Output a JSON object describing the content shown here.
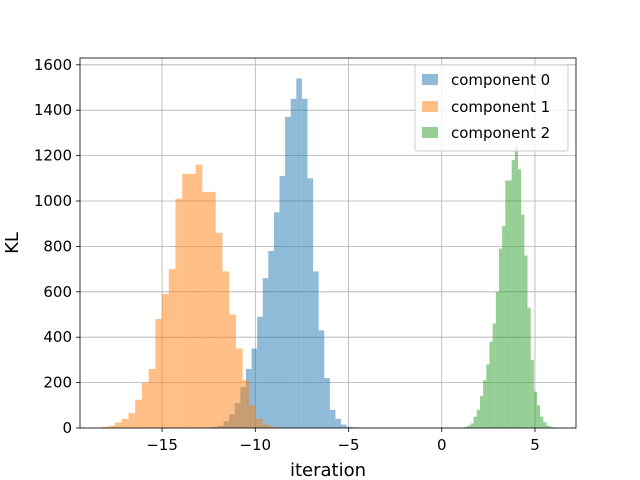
{
  "chart_data": {
    "type": "bar",
    "xlabel": "iteration",
    "ylabel": "KL",
    "xlim": [
      -19.4,
      7.2
    ],
    "ylim": [
      0,
      1630
    ],
    "xticks": [
      {
        "value": -15,
        "label": "−15"
      },
      {
        "value": -10,
        "label": "−10"
      },
      {
        "value": -5,
        "label": "−5"
      },
      {
        "value": 0,
        "label": "0"
      },
      {
        "value": 5,
        "label": "5"
      }
    ],
    "yticks": [
      0,
      200,
      400,
      600,
      800,
      1000,
      1200,
      1400,
      1600
    ],
    "grid": true,
    "legend_position": "top-right",
    "series": [
      {
        "name": "component 0",
        "color": "#1f77b4",
        "alpha": 0.5,
        "bin_start": -12.3,
        "bin_width": 0.3,
        "values": [
          5,
          10,
          30,
          60,
          110,
          180,
          260,
          350,
          490,
          660,
          780,
          950,
          1110,
          1370,
          1450,
          1540,
          1450,
          1100,
          690,
          430,
          220,
          80,
          40,
          15,
          5,
          3
        ]
      },
      {
        "name": "component 1",
        "color": "#ff7f0e",
        "alpha": 0.5,
        "bin_start": -18.6,
        "bin_width": 0.36,
        "values": [
          2,
          5,
          10,
          25,
          40,
          65,
          125,
          200,
          260,
          480,
          590,
          700,
          1010,
          1120,
          1120,
          1160,
          1040,
          1040,
          860,
          690,
          500,
          350,
          210,
          100,
          40,
          15,
          5,
          2
        ]
      },
      {
        "name": "component 2",
        "color": "#2ca02c",
        "alpha": 0.5,
        "bin_start": 1.2,
        "bin_width": 0.17,
        "values": [
          5,
          10,
          20,
          50,
          80,
          140,
          210,
          280,
          380,
          460,
          600,
          790,
          890,
          1090,
          1090,
          1180,
          1240,
          1140,
          940,
          760,
          530,
          300,
          160,
          100,
          50,
          25,
          10,
          5
        ]
      }
    ]
  }
}
